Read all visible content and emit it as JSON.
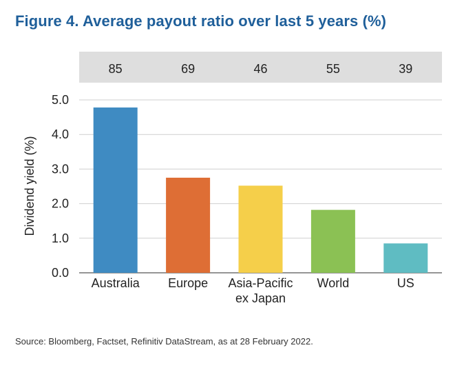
{
  "title": "Figure 4. Average payout ratio over last 5 years (%)",
  "source": "Source: Bloomberg, Factset, Refinitiv DataStream, as at 28 February 2022.",
  "chart_data": {
    "type": "bar",
    "categories": [
      [
        "Australia"
      ],
      [
        "Europe"
      ],
      [
        "Asia-Pacific",
        "ex Japan"
      ],
      [
        "World"
      ],
      [
        "US"
      ]
    ],
    "values": [
      4.78,
      2.75,
      2.52,
      1.82,
      0.85
    ],
    "payout_ratios": [
      "85",
      "69",
      "46",
      "55",
      "39"
    ],
    "colors": [
      "#3f8bc2",
      "#de6e35",
      "#f5cf4a",
      "#8bc154",
      "#5fbcc2"
    ],
    "ylabel": "Dividend yield (%)",
    "xlabel": "",
    "ylim": [
      0,
      5
    ],
    "yticks": [
      "0.0",
      "1.0",
      "2.0",
      "3.0",
      "4.0",
      "5.0"
    ],
    "grid": true,
    "payout_band_color": "#dedede"
  }
}
